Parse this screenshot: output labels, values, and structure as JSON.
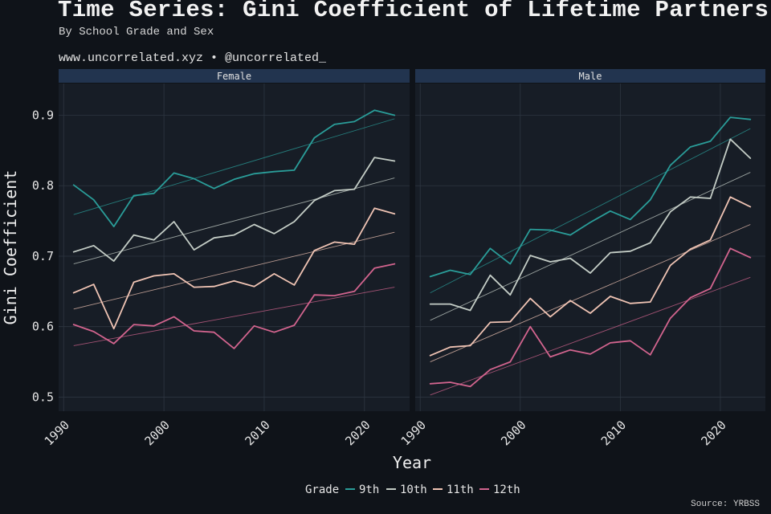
{
  "header": {
    "title": "Time Series: Gini Coefficient of Lifetime Partners",
    "subtitle": "By School Grade and Sex",
    "website": "www.uncorrelated.xyz • @uncorrelated_"
  },
  "footer": {
    "source": "Source: YRBSS"
  },
  "colors": {
    "background": "#0f1319",
    "panel": "#171d26",
    "strip": "#22344f",
    "grid": "#2e3641",
    "9th": "#2a9d99",
    "10th": "#c4cdc6",
    "11th": "#f0c4b4",
    "12th": "#d2648e"
  },
  "chart_data": {
    "type": "line",
    "xlabel": "Year",
    "ylabel": "Gini Coefficient",
    "xlim": [
      1989.5,
      2024.5
    ],
    "ylim": [
      0.48,
      0.945
    ],
    "x_ticks": [
      1990,
      2000,
      2010,
      2020
    ],
    "y_ticks": [
      0.5,
      0.6,
      0.7,
      0.8,
      0.9
    ],
    "y_tick_labels": [
      "0.5",
      "0.6",
      "0.7",
      "0.8",
      "0.9"
    ],
    "grid": true,
    "legend": {
      "title": "Grade",
      "position": "bottom",
      "entries": [
        "9th",
        "10th",
        "11th",
        "12th"
      ]
    },
    "x": [
      1991,
      1993,
      1995,
      1997,
      1999,
      2001,
      2003,
      2005,
      2007,
      2009,
      2011,
      2013,
      2015,
      2017,
      2019,
      2021,
      2023
    ],
    "panels": [
      {
        "name": "Female",
        "series": [
          {
            "name": "9th",
            "values": [
              0.801,
              0.78,
              0.742,
              0.786,
              0.789,
              0.818,
              0.81,
              0.796,
              0.809,
              0.817,
              0.82,
              0.822,
              0.868,
              0.887,
              0.891,
              0.907,
              0.9
            ]
          },
          {
            "name": "10th",
            "values": [
              0.706,
              0.715,
              0.693,
              0.73,
              0.723,
              0.749,
              0.709,
              0.726,
              0.73,
              0.745,
              0.732,
              0.749,
              0.779,
              0.793,
              0.795,
              0.84,
              0.835
            ]
          },
          {
            "name": "11th",
            "values": [
              0.648,
              0.66,
              0.597,
              0.663,
              0.672,
              0.675,
              0.656,
              0.657,
              0.665,
              0.657,
              0.675,
              0.659,
              0.708,
              0.72,
              0.717,
              0.768,
              0.76
            ]
          },
          {
            "name": "12th",
            "values": [
              0.603,
              0.593,
              0.576,
              0.603,
              0.601,
              0.614,
              0.594,
              0.592,
              0.569,
              0.601,
              0.592,
              0.602,
              0.645,
              0.644,
              0.65,
              0.683,
              0.689
            ]
          }
        ],
        "trends": [
          {
            "name": "9th",
            "start": [
              1991,
              0.759
            ],
            "end": [
              2023,
              0.895
            ]
          },
          {
            "name": "10th",
            "start": [
              1991,
              0.689
            ],
            "end": [
              2023,
              0.811
            ]
          },
          {
            "name": "11th",
            "start": [
              1991,
              0.625
            ],
            "end": [
              2023,
              0.734
            ]
          },
          {
            "name": "12th",
            "start": [
              1991,
              0.573
            ],
            "end": [
              2023,
              0.656
            ]
          }
        ]
      },
      {
        "name": "Male",
        "series": [
          {
            "name": "9th",
            "values": [
              0.671,
              0.68,
              0.674,
              0.711,
              0.689,
              0.738,
              0.737,
              0.73,
              0.748,
              0.764,
              0.752,
              0.78,
              0.829,
              0.855,
              0.863,
              0.897,
              0.894
            ]
          },
          {
            "name": "10th",
            "values": [
              0.632,
              0.632,
              0.623,
              0.673,
              0.645,
              0.701,
              0.692,
              0.697,
              0.676,
              0.705,
              0.707,
              0.719,
              0.763,
              0.784,
              0.782,
              0.866,
              0.839
            ]
          },
          {
            "name": "11th",
            "values": [
              0.559,
              0.571,
              0.573,
              0.606,
              0.607,
              0.64,
              0.614,
              0.637,
              0.619,
              0.643,
              0.633,
              0.635,
              0.687,
              0.71,
              0.723,
              0.784,
              0.77
            ]
          },
          {
            "name": "12th",
            "values": [
              0.519,
              0.521,
              0.515,
              0.539,
              0.55,
              0.6,
              0.557,
              0.567,
              0.561,
              0.577,
              0.58,
              0.56,
              0.612,
              0.641,
              0.654,
              0.711,
              0.698
            ]
          }
        ],
        "trends": [
          {
            "name": "9th",
            "start": [
              1991,
              0.648
            ],
            "end": [
              2023,
              0.881
            ]
          },
          {
            "name": "10th",
            "start": [
              1991,
              0.609
            ],
            "end": [
              2023,
              0.819
            ]
          },
          {
            "name": "11th",
            "start": [
              1991,
              0.55
            ],
            "end": [
              2023,
              0.745
            ]
          },
          {
            "name": "12th",
            "start": [
              1991,
              0.503
            ],
            "end": [
              2023,
              0.67
            ]
          }
        ]
      }
    ]
  }
}
